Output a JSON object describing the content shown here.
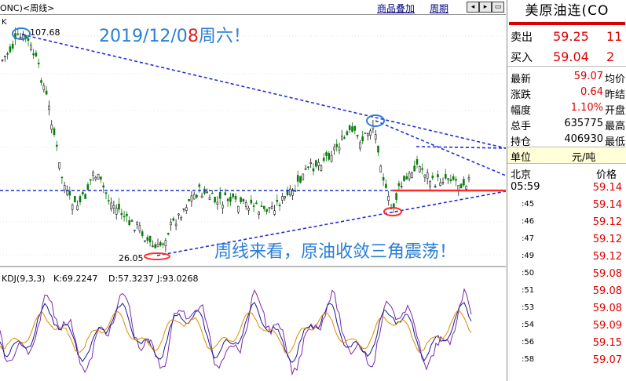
{
  "header": {
    "instrument_tag": "ONC)<周线>",
    "overlay_link": "商品叠加",
    "period_link": "周期",
    "nav_icons": [
      "left-arrow-icon",
      "right-arrow-icon",
      "expand-icon"
    ]
  },
  "chart_data": [
    {
      "type": "candlestick",
      "title": "",
      "axis_label_k": "K",
      "high_label": "107.68",
      "low_label": "26.05",
      "annotation_date": "2019/12/0",
      "annotation_date_red": "8",
      "annotation_date_tail": "周六！",
      "annotation_bottom": "周线来看，原油收敛三角震荡！",
      "key_points": [
        {
          "label": "high",
          "value": 107.68
        },
        {
          "label": "low",
          "value": 26.05
        }
      ],
      "grid": true
    },
    {
      "type": "line",
      "title": "KDJ(9,3,3)",
      "series": [
        {
          "name": "K",
          "value_label": "K:69.2247",
          "color": "#1a1a8c"
        },
        {
          "name": "D",
          "value_label": "D:57.3237",
          "color": "#e08a00"
        },
        {
          "name": "J",
          "value_label": "J:93.0268",
          "color": "#7a2aa8"
        }
      ]
    }
  ],
  "quote_panel": {
    "title": "美原油连(CO",
    "sell_label": "卖出",
    "sell_price": "59.25",
    "sell_vol": "11",
    "buy_label": "买入",
    "buy_price": "59.04",
    "buy_vol": "2",
    "stats": [
      {
        "label": "最新",
        "value": "59.07",
        "extra": "均价",
        "red": true
      },
      {
        "label": "涨跌",
        "value": "0.64",
        "extra": "昨结",
        "red": true
      },
      {
        "label": "幅度",
        "value": "1.10%",
        "extra": "开盘",
        "red": true
      },
      {
        "label": "总手",
        "value": "635775",
        "extra": "最高",
        "red": false
      },
      {
        "label": "持仓",
        "value": "406930",
        "extra": "最低",
        "red": false
      }
    ],
    "unit_label": "单位",
    "unit_value": "元/吨",
    "tick_header_left": "北京",
    "tick_header_right": "价格",
    "ticks": [
      {
        "time": "05:59",
        "price": "59.14"
      },
      {
        "time": ":45",
        "price": "59.14"
      },
      {
        "time": ":46",
        "price": "59.12"
      },
      {
        "time": ":47",
        "price": "59.12"
      },
      {
        "time": ":49",
        "price": "59.12"
      },
      {
        "time": ":50",
        "price": "59.08"
      },
      {
        "time": ":51",
        "price": "59.08"
      },
      {
        "time": ":53",
        "price": "59.08"
      },
      {
        "time": ":54",
        "price": "59.09"
      },
      {
        "time": ":56",
        "price": "59.15"
      },
      {
        "time": ":58",
        "price": "59.07"
      }
    ]
  }
}
